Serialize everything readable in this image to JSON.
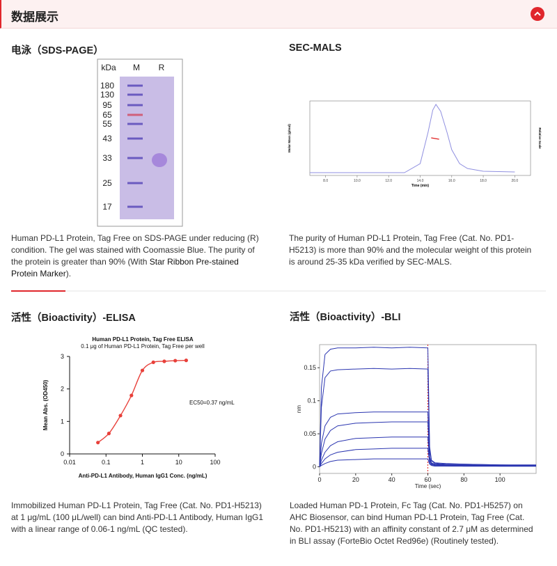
{
  "header": {
    "title": "数据展示"
  },
  "panels": [
    {
      "title": "电泳（SDS-PAGE）",
      "gel": {
        "lanes": [
          "kDa",
          "M",
          "R"
        ],
        "markers": [
          180,
          130,
          95,
          65,
          55,
          43,
          33,
          25,
          17
        ]
      },
      "caption": [
        "Human PD-L1 Protein, Tag Free on SDS-PAGE under reducing (R) condition. The gel was stained with Coomassie Blue. The purity of the protein is greater than 90% (With ",
        "Star Ribbon Pre-stained Protein Marker",
        ")."
      ]
    },
    {
      "title": "SEC-MALS",
      "chart": {
        "type": "line",
        "xlabel": "Time (min)",
        "ylabel": "Molar Mass (g/mol)",
        "y2label": "Relative Scale",
        "xlim": [
          7,
          21
        ],
        "ylim": [
          -0.02,
          1.05
        ],
        "xticks": [
          {
            "value": 8,
            "label": "8.0"
          },
          {
            "value": 10,
            "label": "10.0"
          },
          {
            "value": 12,
            "label": "12.0"
          },
          {
            "value": 14,
            "label": "14.0"
          },
          {
            "value": 16,
            "label": "16.0"
          },
          {
            "value": 18,
            "label": "18.0"
          },
          {
            "value": 20,
            "label": "20.0"
          }
        ],
        "series": [
          {
            "color": "#8f8fe0",
            "x": [
              7,
              13,
              14,
              14.5,
              14.8,
              15,
              15.3,
              15.7,
              16,
              16.5,
              17,
              18,
              20
            ],
            "values": [
              0.02,
              0.02,
              0.15,
              0.6,
              0.92,
              1,
              0.9,
              0.6,
              0.35,
              0.15,
              0.08,
              0.04,
              0.03
            ]
          },
          {
            "color": "#e02020",
            "x": [
              14.7,
              15.2
            ],
            "values": [
              0.52,
              0.5
            ]
          }
        ]
      },
      "caption": [
        "The purity of Human PD-L1 Protein, Tag Free (Cat. No. PD1-H5213) is more than 90% and the molecular weight of this protein is around 25-35 kDa verified by SEC-MALS."
      ]
    },
    {
      "title": "活性（Bioactivity）-ELISA",
      "chart": {
        "type": "scatter",
        "title": "Human PD-L1 Protein, Tag Free ELISA",
        "subtitle": "0.1 μg of Human PD-L1 Protein, Tag Free per well",
        "xlabel": "Anti-PD-L1 Antibody, Human IgG1 Conc. (ng/mL)",
        "ylabel": "Mean Abs. (OD450)",
        "annotation": "EC50=0.37 ng/mL",
        "xlog": true,
        "xlim": [
          0.01,
          100
        ],
        "ylim": [
          0,
          3
        ],
        "xticks": [
          0.01,
          0.1,
          1,
          10,
          100
        ],
        "yticks": [
          0,
          1,
          2,
          3
        ],
        "color": "#e8403a",
        "x": [
          0.06,
          0.12,
          0.25,
          0.5,
          1,
          2,
          4,
          8,
          16
        ],
        "values": [
          0.35,
          0.63,
          1.18,
          1.8,
          2.57,
          2.82,
          2.85,
          2.87,
          2.88
        ]
      },
      "caption": [
        "Immobilized Human PD-L1 Protein, Tag Free (Cat. No. PD1-H5213) at 1 μg/mL (100 μL/well) can bind Anti-PD-L1 Antibody, Human IgG1 with a linear range of 0.06-1 ng/mL (QC tested)."
      ]
    },
    {
      "title": "活性（Bioactivity）-BLI",
      "chart": {
        "type": "line",
        "xlabel": "Time (sec)",
        "ylabel": "nm",
        "xlim": [
          0,
          120
        ],
        "ylim": [
          -0.01,
          0.185
        ],
        "xticks": [
          0,
          20,
          40,
          60,
          80,
          100
        ],
        "yticks": [
          0,
          0.05,
          0.1,
          0.15
        ],
        "vline": 60,
        "vline_color": "#e02020",
        "x": [
          0,
          1,
          3,
          6,
          10,
          20,
          30,
          40,
          50,
          60,
          61,
          62,
          64,
          70,
          80,
          100,
          120
        ],
        "series": [
          {
            "color": "#2a35b0",
            "values": [
              0,
              0.12,
              0.17,
              0.178,
              0.18,
              0.18,
              0.181,
              0.18,
              0.181,
              0.18,
              0.03,
              0.01,
              0.006,
              0.005,
              0.004,
              0.003,
              0.003
            ]
          },
          {
            "color": "#2a35b0",
            "values": [
              0,
              0.09,
              0.135,
              0.145,
              0.147,
              0.148,
              0.149,
              0.148,
              0.149,
              0.148,
              0.025,
              0.009,
              0.005,
              0.004,
              0.004,
              0.003,
              0.002
            ]
          },
          {
            "color": "#2a35b0",
            "values": [
              0,
              0.035,
              0.062,
              0.075,
              0.08,
              0.082,
              0.083,
              0.083,
              0.083,
              0.083,
              0.015,
              0.006,
              0.004,
              0.003,
              0.003,
              0.002,
              0.002
            ]
          },
          {
            "color": "#2a35b0",
            "values": [
              0,
              0.02,
              0.042,
              0.055,
              0.062,
              0.066,
              0.067,
              0.068,
              0.068,
              0.068,
              0.012,
              0.005,
              0.003,
              0.003,
              0.002,
              0.002,
              0.002
            ]
          },
          {
            "color": "#2a35b0",
            "values": [
              0,
              0.01,
              0.022,
              0.032,
              0.038,
              0.043,
              0.044,
              0.045,
              0.045,
              0.045,
              0.009,
              0.004,
              0.003,
              0.002,
              0.002,
              0.001,
              0.001
            ]
          },
          {
            "color": "#2a35b0",
            "values": [
              0,
              0.005,
              0.012,
              0.018,
              0.022,
              0.026,
              0.027,
              0.028,
              0.028,
              0.028,
              0.006,
              0.003,
              0.002,
              0.002,
              0.001,
              0.001,
              0.001
            ]
          },
          {
            "color": "#2a35b0",
            "values": [
              0,
              0.002,
              0.005,
              0.008,
              0.01,
              0.011,
              0.012,
              0.012,
              0.012,
              0.012,
              0.004,
              0.002,
              0.001,
              0.001,
              0.001,
              0.001,
              0.001
            ]
          }
        ]
      },
      "caption": [
        "Loaded Human PD-1 Protein, Fc Tag (Cat. No. PD1-H5257) on AHC Biosensor, can bind Human PD-L1 Protein, Tag Free (Cat. No. PD1-H5213) with an affinity constant of 2.7 μM as determined in BLI assay (ForteBio Octet Red96e) (Routinely tested)."
      ]
    }
  ]
}
